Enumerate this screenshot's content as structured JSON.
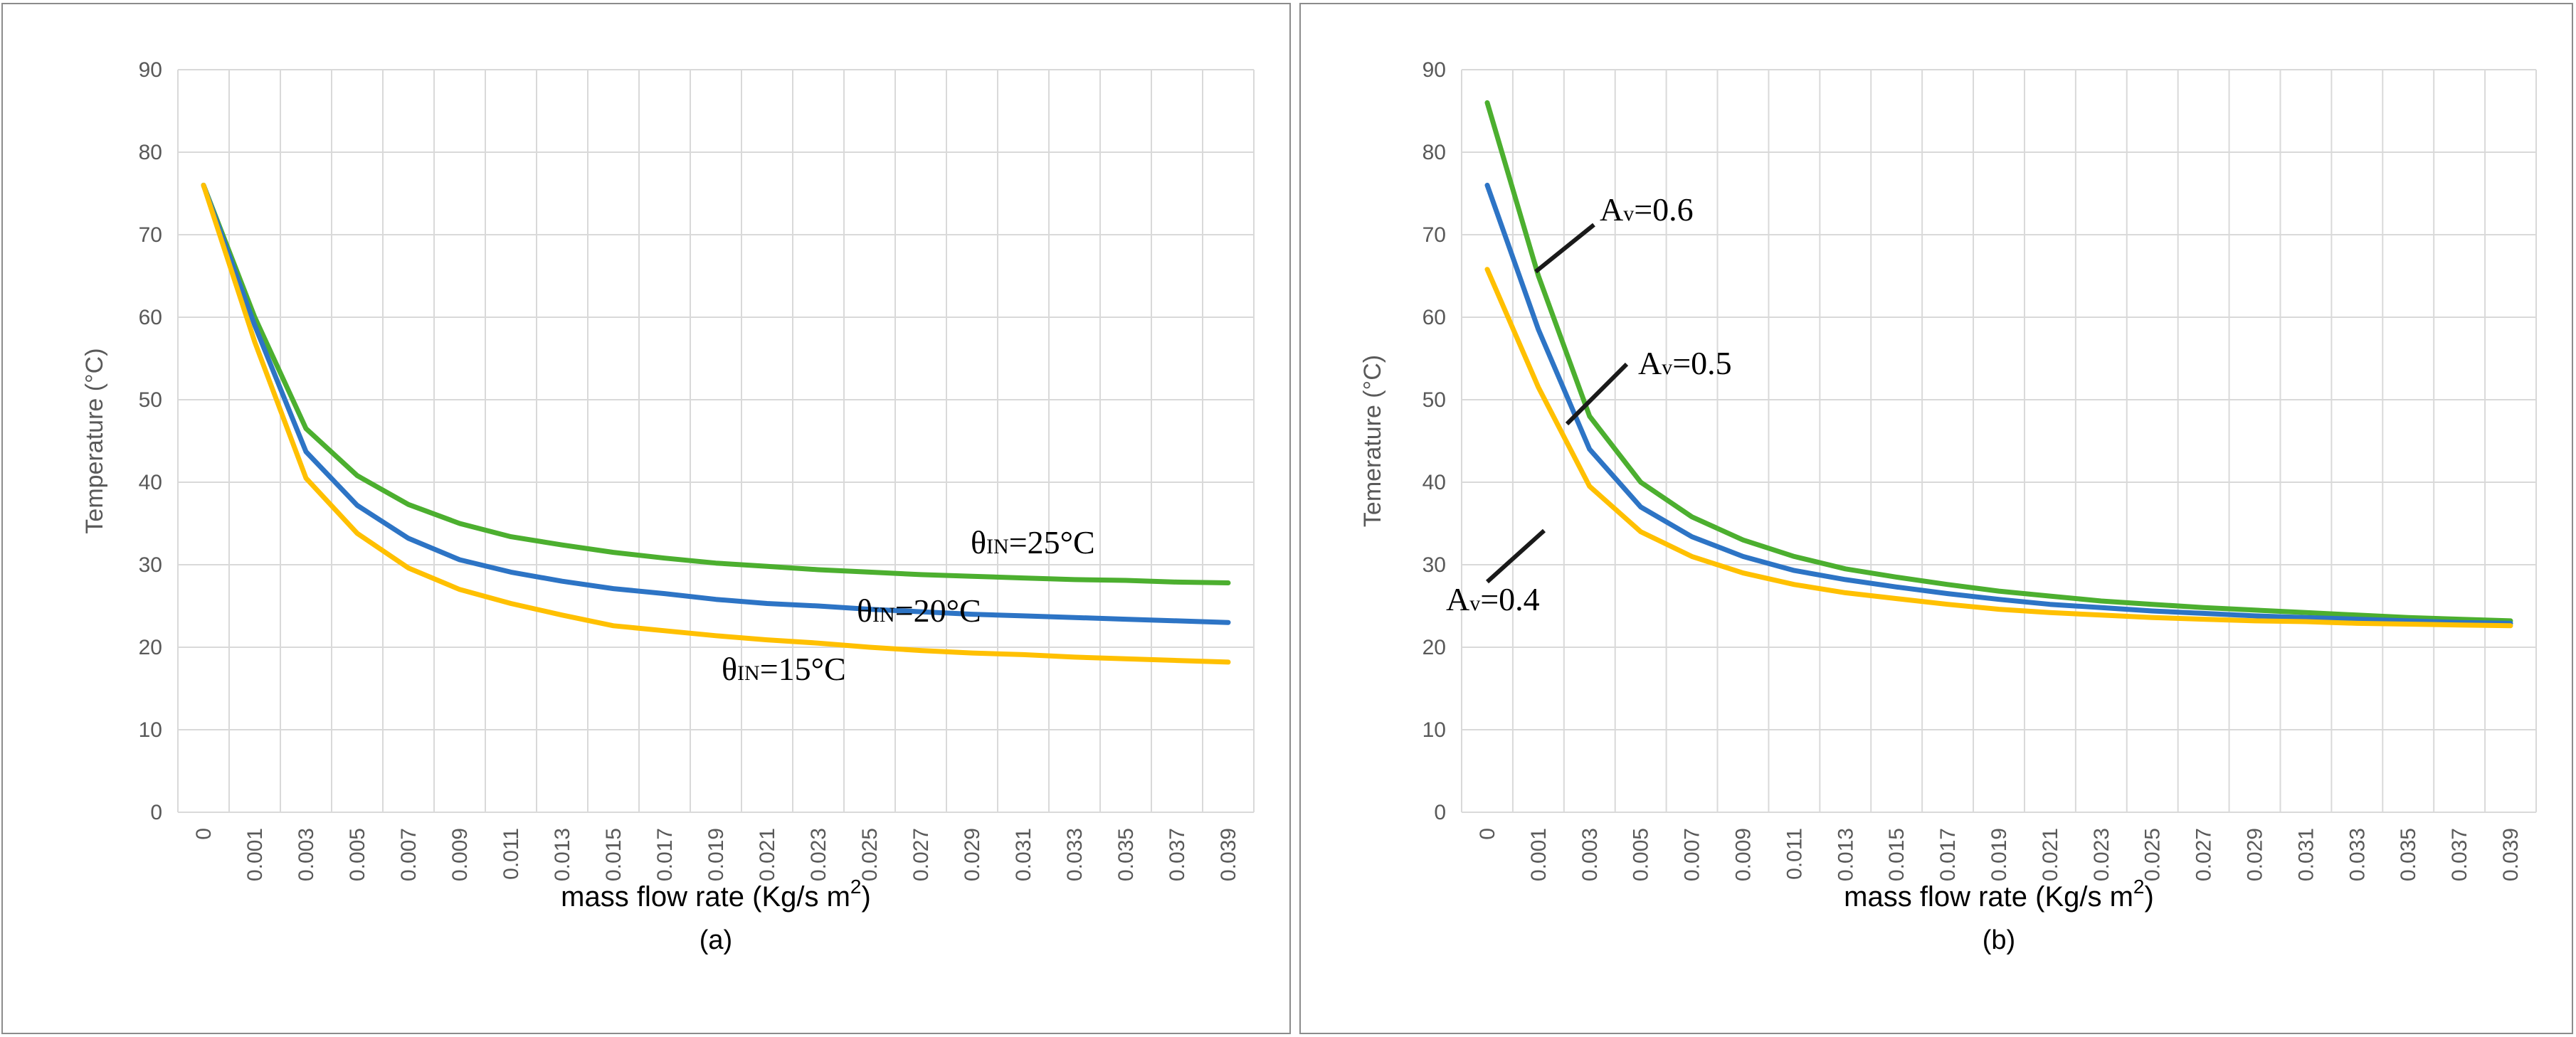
{
  "chart_data": [
    {
      "type": "line",
      "panel_caption": "(a)",
      "xlabel": "mass flow rate (Kg/s m",
      "xlabel_sup": "2",
      "xlabel_end": ")",
      "ylabel": "Temperature (°C)",
      "ylim": [
        0,
        90
      ],
      "yticks": [
        "0",
        "10",
        "20",
        "30",
        "40",
        "50",
        "60",
        "70",
        "80",
        "90"
      ],
      "categories": [
        "0",
        "0.001",
        "0.003",
        "0.005",
        "0.007",
        "0.009",
        "0.011",
        "0.013",
        "0.015",
        "0.017",
        "0.019",
        "0.021",
        "0.023",
        "0.025",
        "0.027",
        "0.029",
        "0.031",
        "0.033",
        "0.035",
        "0.037",
        "0.039"
      ],
      "grid": true,
      "series": [
        {
          "name": "θIN=25°C",
          "color": "#4caf2f",
          "values": [
            76,
            60,
            46.5,
            40.8,
            37.3,
            35,
            33.4,
            32.4,
            31.5,
            30.8,
            30.2,
            29.8,
            29.4,
            29.1,
            28.8,
            28.6,
            28.4,
            28.2,
            28.1,
            27.9,
            27.8
          ]
        },
        {
          "name": "θIN=20°C",
          "color": "#2d74c5",
          "values": [
            76,
            59,
            43.7,
            37.2,
            33.2,
            30.6,
            29.1,
            28,
            27.1,
            26.5,
            25.8,
            25.3,
            25,
            24.6,
            24.3,
            24,
            23.8,
            23.6,
            23.4,
            23.2,
            23
          ]
        },
        {
          "name": "θIN=15°C",
          "color": "#ffc000",
          "values": [
            76,
            57,
            40.5,
            33.8,
            29.6,
            27,
            25.3,
            23.9,
            22.6,
            22,
            21.4,
            20.9,
            20.5,
            20,
            19.6,
            19.3,
            19.1,
            18.8,
            18.6,
            18.4,
            18.2
          ]
        }
      ],
      "annotations": [
        {
          "text_main": "θ",
          "text_sub": "IN",
          "text_rest": "=25°C",
          "target": "series-0"
        },
        {
          "text_main": "θ",
          "text_sub": "IN",
          "text_rest": "=20°C",
          "target": "series-1"
        },
        {
          "text_main": "θ",
          "text_sub": "IN",
          "text_rest": "=15°C",
          "target": "series-2"
        }
      ]
    },
    {
      "type": "line",
      "panel_caption": "(b)",
      "xlabel": "mass flow rate (Kg/s m",
      "xlabel_sup": "2",
      "xlabel_end": ")",
      "ylabel": "Temerature (°C)",
      "ylim": [
        0,
        90
      ],
      "yticks": [
        "0",
        "10",
        "20",
        "30",
        "40",
        "50",
        "60",
        "70",
        "80",
        "90"
      ],
      "categories": [
        "0",
        "0.001",
        "0.003",
        "0.005",
        "0.007",
        "0.009",
        "0.011",
        "0.013",
        "0.015",
        "0.017",
        "0.019",
        "0.021",
        "0.023",
        "0.025",
        "0.027",
        "0.029",
        "0.031",
        "0.033",
        "0.035",
        "0.037",
        "0.039"
      ],
      "grid": true,
      "series": [
        {
          "name": "Av=0.6",
          "color": "#4caf2f",
          "values": [
            86,
            65,
            48,
            40,
            35.8,
            33,
            31,
            29.5,
            28.5,
            27.6,
            26.8,
            26.2,
            25.6,
            25.2,
            24.8,
            24.5,
            24.2,
            23.9,
            23.6,
            23.4,
            23.2
          ]
        },
        {
          "name": "Av=0.5",
          "color": "#2d74c5",
          "values": [
            76,
            58.5,
            44,
            37,
            33.4,
            31,
            29.3,
            28.2,
            27.3,
            26.5,
            25.8,
            25.2,
            24.8,
            24.4,
            24.1,
            23.8,
            23.6,
            23.4,
            23.2,
            23,
            22.9
          ]
        },
        {
          "name": "Av=0.4",
          "color": "#ffc000",
          "values": [
            65.8,
            51.5,
            39.5,
            34,
            31,
            29,
            27.6,
            26.6,
            25.9,
            25.2,
            24.6,
            24.2,
            23.9,
            23.6,
            23.4,
            23.2,
            23.1,
            22.9,
            22.8,
            22.7,
            22.6
          ]
        }
      ],
      "annotations": [
        {
          "text_main": "A",
          "text_sub": "v",
          "text_rest": "=0.6",
          "target": "series-0"
        },
        {
          "text_main": "A",
          "text_sub": "v",
          "text_rest": "=0.5",
          "target": "series-1"
        },
        {
          "text_main": "A",
          "text_sub": "v",
          "text_rest": "=0.4",
          "target": "series-2"
        }
      ]
    }
  ]
}
